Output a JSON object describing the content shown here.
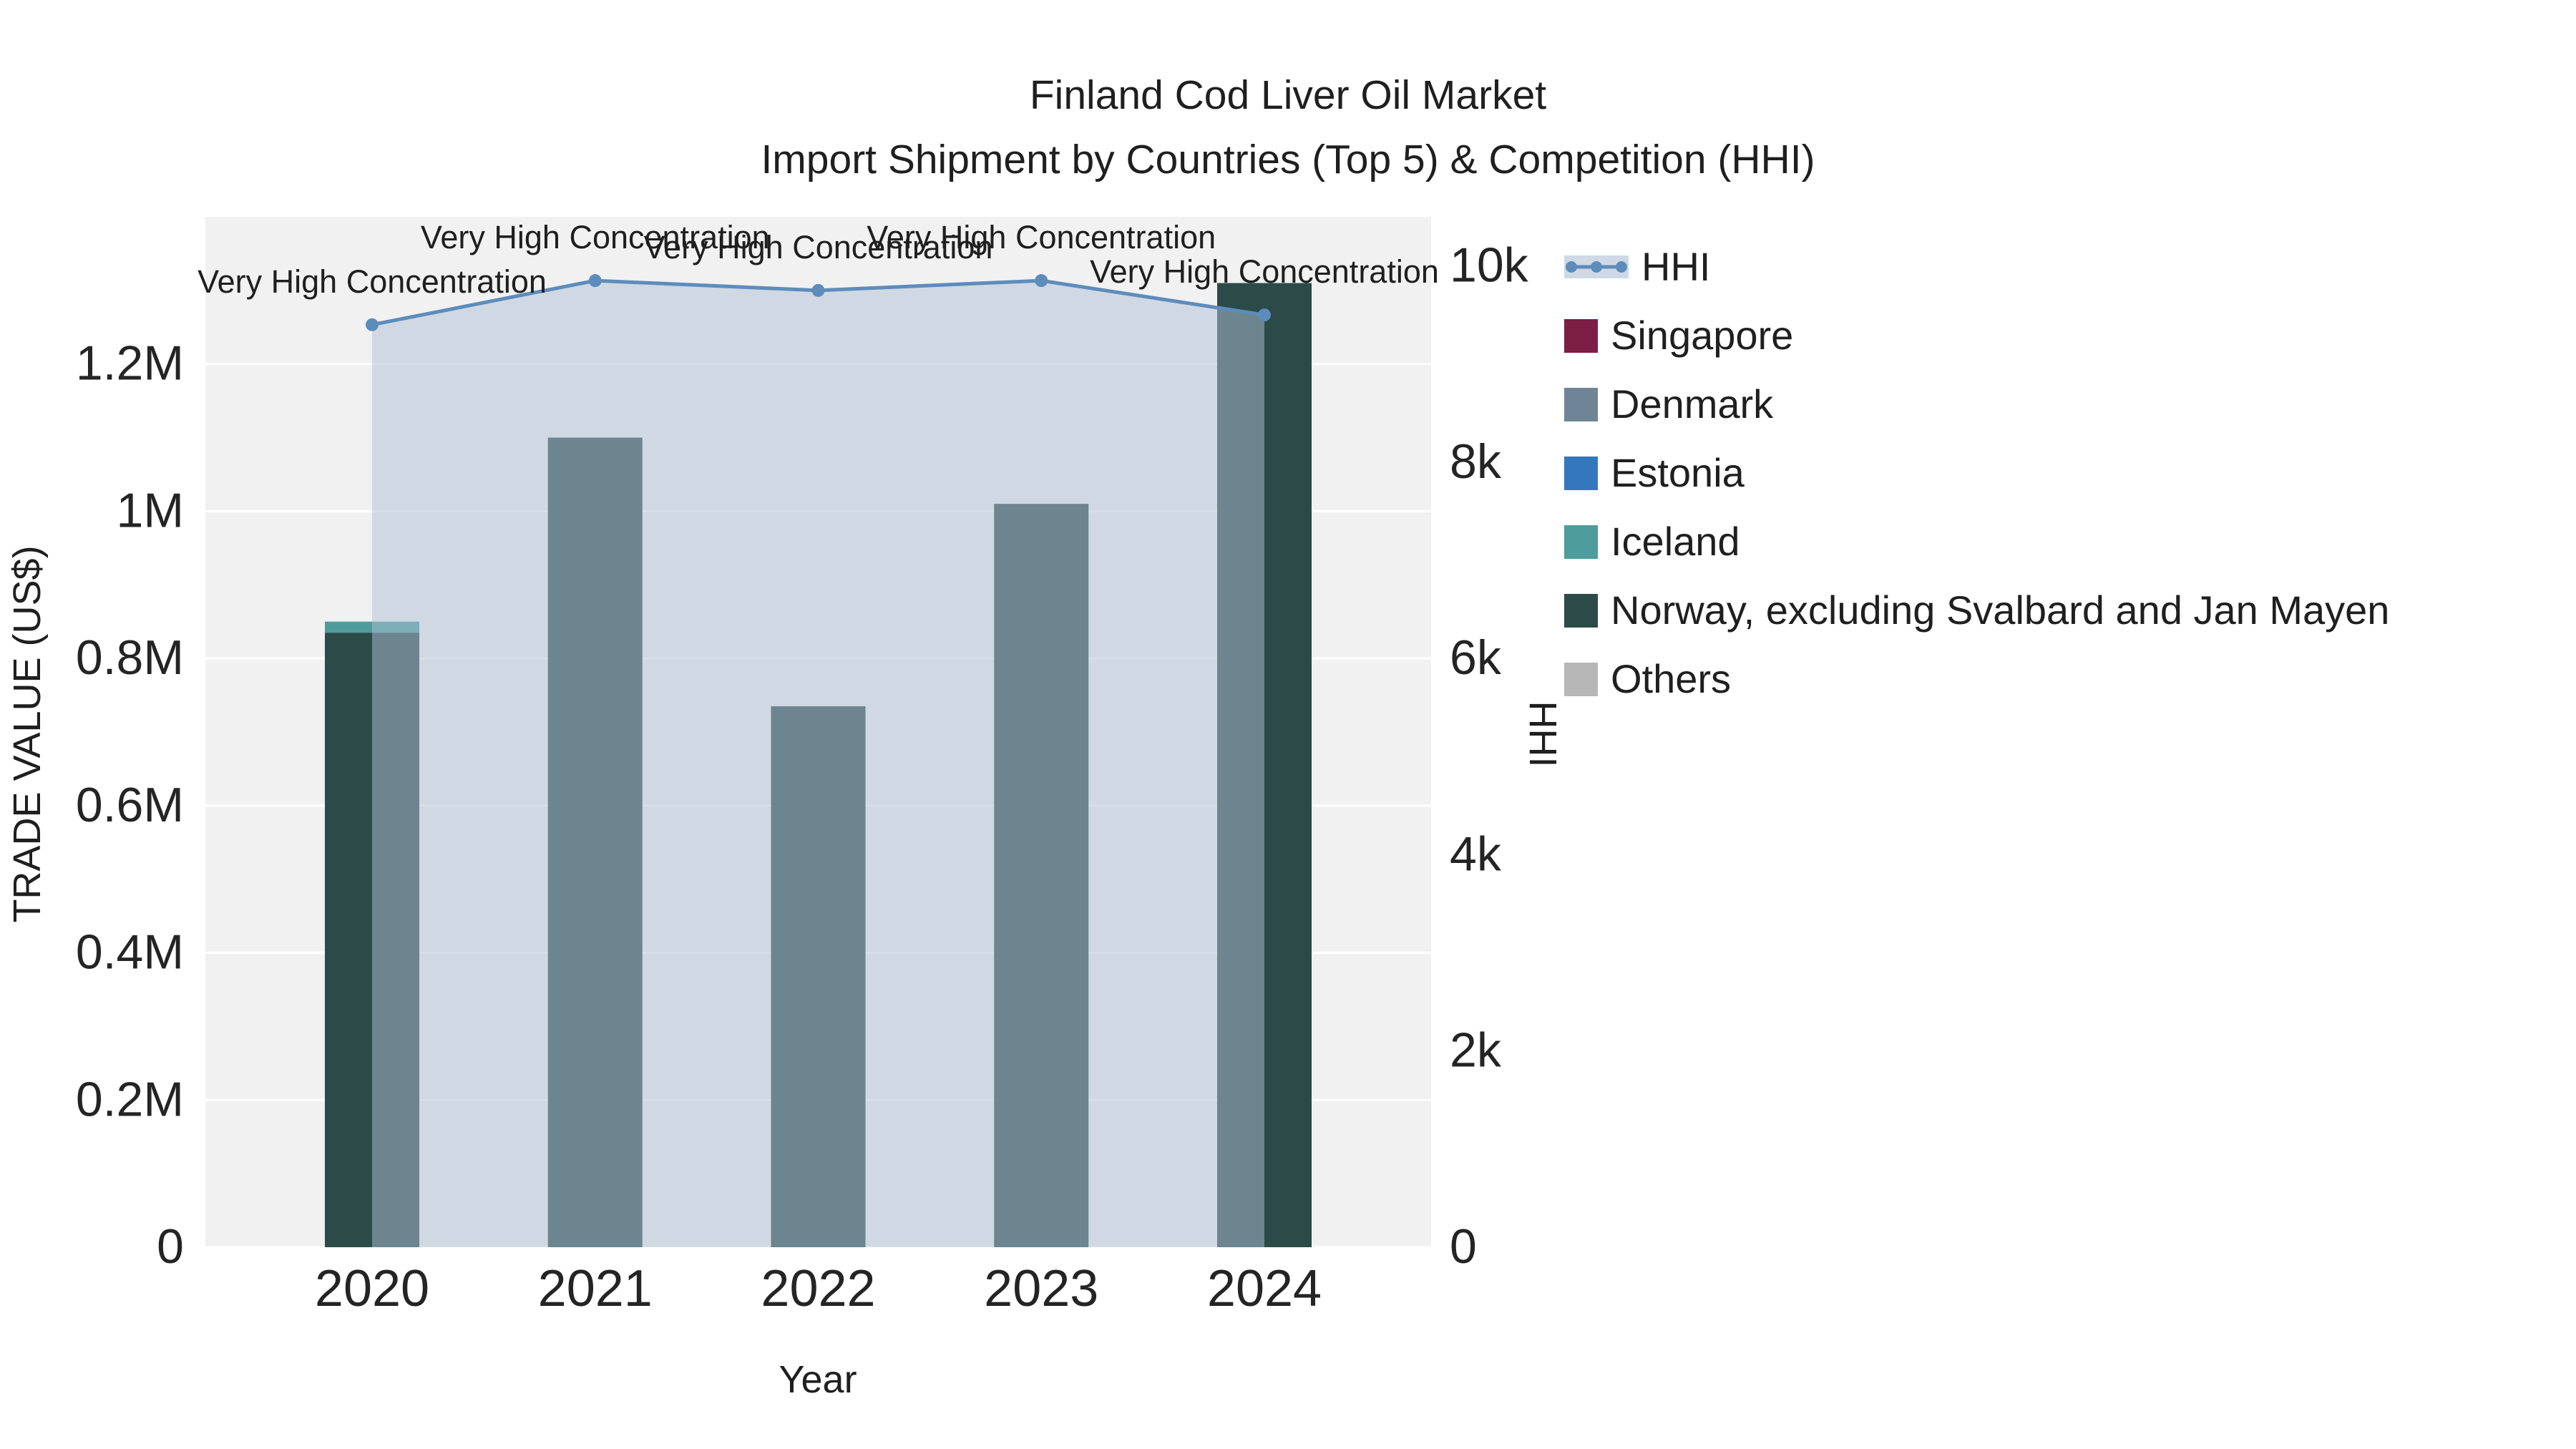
{
  "title": {
    "line1": "Finland Cod Liver Oil Market",
    "line2": "Import Shipment by Countries (Top 5) & Competition (HHI)"
  },
  "chart_data": {
    "type": "bar+line",
    "title": "Finland Cod Liver Oil Market — Import Shipment by Countries (Top 5) & Competition (HHI)",
    "x": [
      "2020",
      "2021",
      "2022",
      "2023",
      "2024"
    ],
    "xlabel": "Year",
    "ylabel_left": "TRADE VALUE (US$)",
    "ylabel_right": "HHI",
    "plot_bg": "#f1f1f2",
    "y_left_ticks": [
      "0",
      "0.2M",
      "0.4M",
      "0.6M",
      "0.8M",
      "1M",
      "1.2M"
    ],
    "y_left_tick_values": [
      0,
      200000,
      400000,
      600000,
      800000,
      1000000,
      1200000
    ],
    "y_left_range": [
      0,
      1400000
    ],
    "y_right_ticks": [
      "0",
      "2k",
      "4k",
      "6k",
      "8k",
      "10k"
    ],
    "y_right_tick_values": [
      0,
      2000,
      4000,
      6000,
      8000,
      10000
    ],
    "y_right_range": [
      0,
      10500
    ],
    "bar_series": [
      {
        "name": "Singapore",
        "color": "#7d1f45",
        "values": [
          0,
          0,
          0,
          0,
          0
        ]
      },
      {
        "name": "Denmark",
        "color": "#6f8595",
        "values": [
          0,
          0,
          0,
          0,
          0
        ]
      },
      {
        "name": "Estonia",
        "color": "#3577bc",
        "values": [
          0,
          0,
          0,
          0,
          0
        ]
      },
      {
        "name": "Iceland",
        "color": "#4f9c9c",
        "values": [
          15000,
          0,
          0,
          0,
          0
        ]
      },
      {
        "name": "Norway, excluding Svalbard and Jan Mayen",
        "color": "#2c4b48",
        "values": [
          835000,
          1100000,
          735000,
          1010000,
          1310000
        ]
      },
      {
        "name": "Others",
        "color": "#b7b7b7",
        "values": [
          0,
          0,
          0,
          0,
          0
        ]
      }
    ],
    "line_series": {
      "name": "HHI",
      "color": "#5d8cba",
      "fill": "#adbfd3",
      "values": [
        9400,
        9850,
        9750,
        9850,
        9500
      ]
    },
    "annotations": [
      "Very High Concentration",
      "Very High Concentration",
      "Very High Concentration",
      "Very High Concentration",
      "Very High Concentration"
    ],
    "legend_position": "right",
    "grid": true
  },
  "legend": {
    "items": [
      {
        "label": "HHI",
        "type": "line",
        "color": "#5d8cba",
        "fill": "#adbfd3"
      },
      {
        "label": "Singapore",
        "type": "swatch",
        "color": "#7d1f45"
      },
      {
        "label": "Denmark",
        "type": "swatch",
        "color": "#6f8595"
      },
      {
        "label": "Estonia",
        "type": "swatch",
        "color": "#3577bc"
      },
      {
        "label": "Iceland",
        "type": "swatch",
        "color": "#4f9c9c"
      },
      {
        "label": "Norway, excluding Svalbard and Jan Mayen",
        "type": "swatch",
        "color": "#2c4b48"
      },
      {
        "label": "Others",
        "type": "swatch",
        "color": "#b7b7b7"
      }
    ]
  }
}
